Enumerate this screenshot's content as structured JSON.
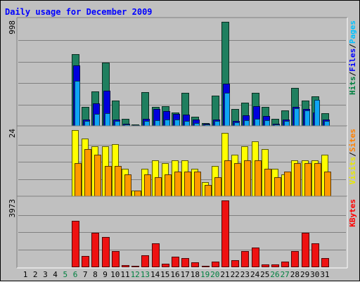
{
  "chart_data": {
    "type": "bar",
    "title": "Daily usage for December 2009",
    "days": [
      "1",
      "2",
      "3",
      "4",
      "5",
      "6",
      "7",
      "8",
      "9",
      "10",
      "11",
      "12",
      "13",
      "14",
      "15",
      "16",
      "17",
      "18",
      "19",
      "20",
      "21",
      "22",
      "23",
      "24",
      "25",
      "26",
      "27",
      "28",
      "29",
      "30",
      "31"
    ],
    "weekend_days": [
      "5",
      "6",
      "12",
      "13",
      "19",
      "20",
      "26",
      "27"
    ],
    "panels": [
      {
        "name": "hits-files-pages",
        "max_label": "998",
        "ylim": [
          0,
          998
        ],
        "legend": [
          {
            "text": "Hits",
            "color": "#008040"
          },
          {
            "text": "/",
            "color": "#000000"
          },
          {
            "text": "Files",
            "color": "#0000ff"
          },
          {
            "text": "/",
            "color": "#000000"
          },
          {
            "text": "Pages",
            "color": "#00c0ff"
          }
        ],
        "series": [
          {
            "name": "Hits",
            "color": "#1f7f5f",
            "values": [
              0,
              0,
              0,
              0,
              0,
              688,
              184,
              330,
              605,
              245,
              70,
              15,
              322,
              180,
              190,
              130,
              320,
              85,
              30,
              290,
              998,
              160,
              225,
              320,
              180,
              70,
              150,
              365,
              240,
              283,
              120
            ]
          },
          {
            "name": "Files",
            "color": "#0000dd",
            "values": [
              0,
              0,
              0,
              0,
              0,
              578,
              60,
              215,
              335,
              60,
              20,
              10,
              70,
              165,
              140,
              115,
              105,
              60,
              18,
              60,
              405,
              48,
              100,
              190,
              95,
              20,
              60,
              180,
              165,
              130,
              60
            ]
          },
          {
            "name": "Pages",
            "color": "#0fa5f5",
            "values": [
              0,
              0,
              0,
              0,
              0,
              432,
              45,
              115,
              122,
              45,
              15,
              8,
              45,
              55,
              60,
              60,
              45,
              30,
              12,
              45,
              315,
              35,
              55,
              65,
              55,
              15,
              45,
              170,
              150,
              250,
              45
            ]
          }
        ]
      },
      {
        "name": "visits-sites",
        "max_label": "24",
        "ylim": [
          0,
          24
        ],
        "legend": [
          {
            "text": "Visits",
            "color": "#e8e800"
          },
          {
            "text": "/",
            "color": "#000000"
          },
          {
            "text": "Sites",
            "color": "#ff8000"
          }
        ],
        "series": [
          {
            "name": "Visits",
            "color": "#ffff00",
            "values": [
              0,
              0,
              0,
              0,
              0,
              24,
              21,
              18,
              18,
              19,
              10,
              2,
              10,
              13,
              12,
              13,
              13,
              10,
              5,
              11,
              23,
              15,
              18,
              20,
              17,
              10,
              8,
              13,
              13,
              13,
              15
            ]
          },
          {
            "name": "Sites",
            "color": "#ff9900",
            "values": [
              0,
              0,
              0,
              0,
              0,
              12,
              17,
              15,
              11,
              11,
              8,
              2,
              8,
              7,
              8,
              9,
              9,
              9,
              4,
              7,
              13,
              12,
              13,
              13,
              10,
              7,
              9,
              12,
              12,
              12,
              9
            ]
          }
        ]
      },
      {
        "name": "kbytes",
        "max_label": "3973",
        "ylim": [
          0,
          3973
        ],
        "legend": [
          {
            "text": "KBytes",
            "color": "#ff0000"
          }
        ],
        "series": [
          {
            "name": "KBytes",
            "color": "#ee1111",
            "values": [
              0,
              0,
              0,
              0,
              0,
              2740,
              640,
              2030,
              1760,
              920,
              90,
              55,
              680,
              1380,
              180,
              610,
              490,
              240,
              45,
              290,
              3973,
              360,
              920,
              1160,
              140,
              120,
              300,
              940,
              2030,
              1380,
              520
            ]
          }
        ]
      }
    ]
  }
}
